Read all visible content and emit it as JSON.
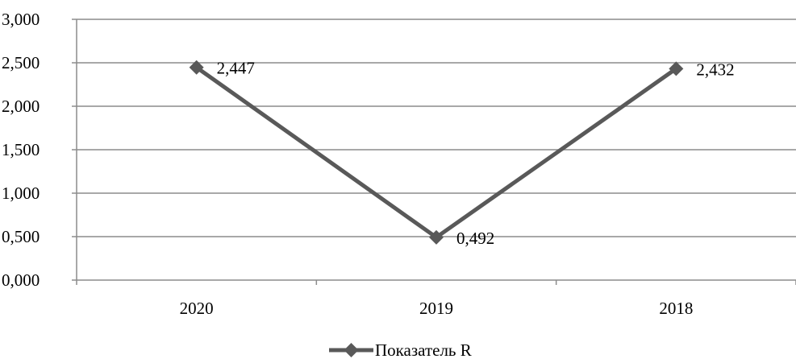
{
  "chart_data": {
    "type": "line",
    "categories": [
      "2020",
      "2019",
      "2018"
    ],
    "series": [
      {
        "name": "Показатель R",
        "values": [
          2.447,
          0.492,
          2.432
        ],
        "data_labels": [
          "2,447",
          "0,492",
          "2,432"
        ],
        "color": "#595959",
        "marker": "diamond"
      }
    ],
    "y_ticks": [
      {
        "value": 0.0,
        "label": "0,000"
      },
      {
        "value": 0.5,
        "label": "0,500"
      },
      {
        "value": 1.0,
        "label": "1,000"
      },
      {
        "value": 1.5,
        "label": "1,500"
      },
      {
        "value": 2.0,
        "label": "2,000"
      },
      {
        "value": 2.5,
        "label": "2,500"
      },
      {
        "value": 3.0,
        "label": "3,000"
      }
    ],
    "ylim": [
      0,
      3
    ],
    "grid": true,
    "gridline_color": "#8c8c8c",
    "legend_position": "bottom",
    "title": "",
    "xlabel": "",
    "ylabel": ""
  }
}
